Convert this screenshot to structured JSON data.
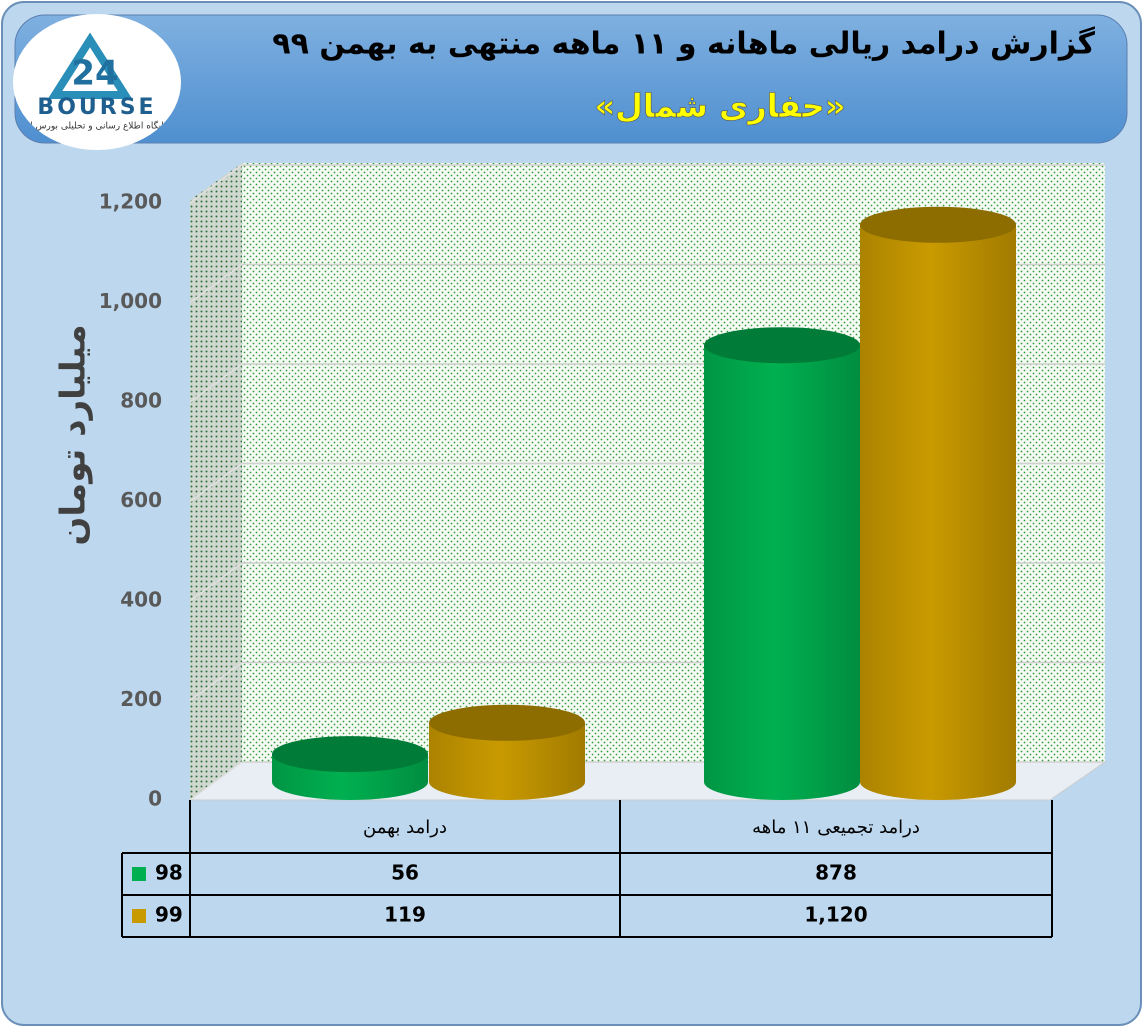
{
  "chart_data": {
    "type": "bar",
    "title": "گزارش درامد ریالی ماهانه و ۱۱ ماهه منتهی به بهمن ۹۹",
    "subtitle": "«حفاری شمال»",
    "y_label": "میلیارد تومان",
    "categories": [
      "درامد بهمن",
      "درامد تجمیعی ۱۱ ماهه"
    ],
    "series": [
      {
        "name": "98",
        "color": "#00b050",
        "values": [
          56,
          878
        ]
      },
      {
        "name": "99",
        "color": "#c99a00",
        "values": [
          119,
          1120
        ],
        "value_labels": [
          "119",
          "1,120"
        ]
      }
    ],
    "ylim": [
      0,
      1200
    ],
    "yticks": [
      0,
      200,
      400,
      600,
      800,
      {
        "value": 1000,
        "label": "1,000"
      },
      {
        "value": 1200,
        "label": "1,200"
      }
    ],
    "grid": true
  },
  "logo": {
    "mark": "24",
    "name": "BOURSE",
    "tagline": "پایگاه اطلاع رسانی و تحلیلی بورس ایران"
  }
}
